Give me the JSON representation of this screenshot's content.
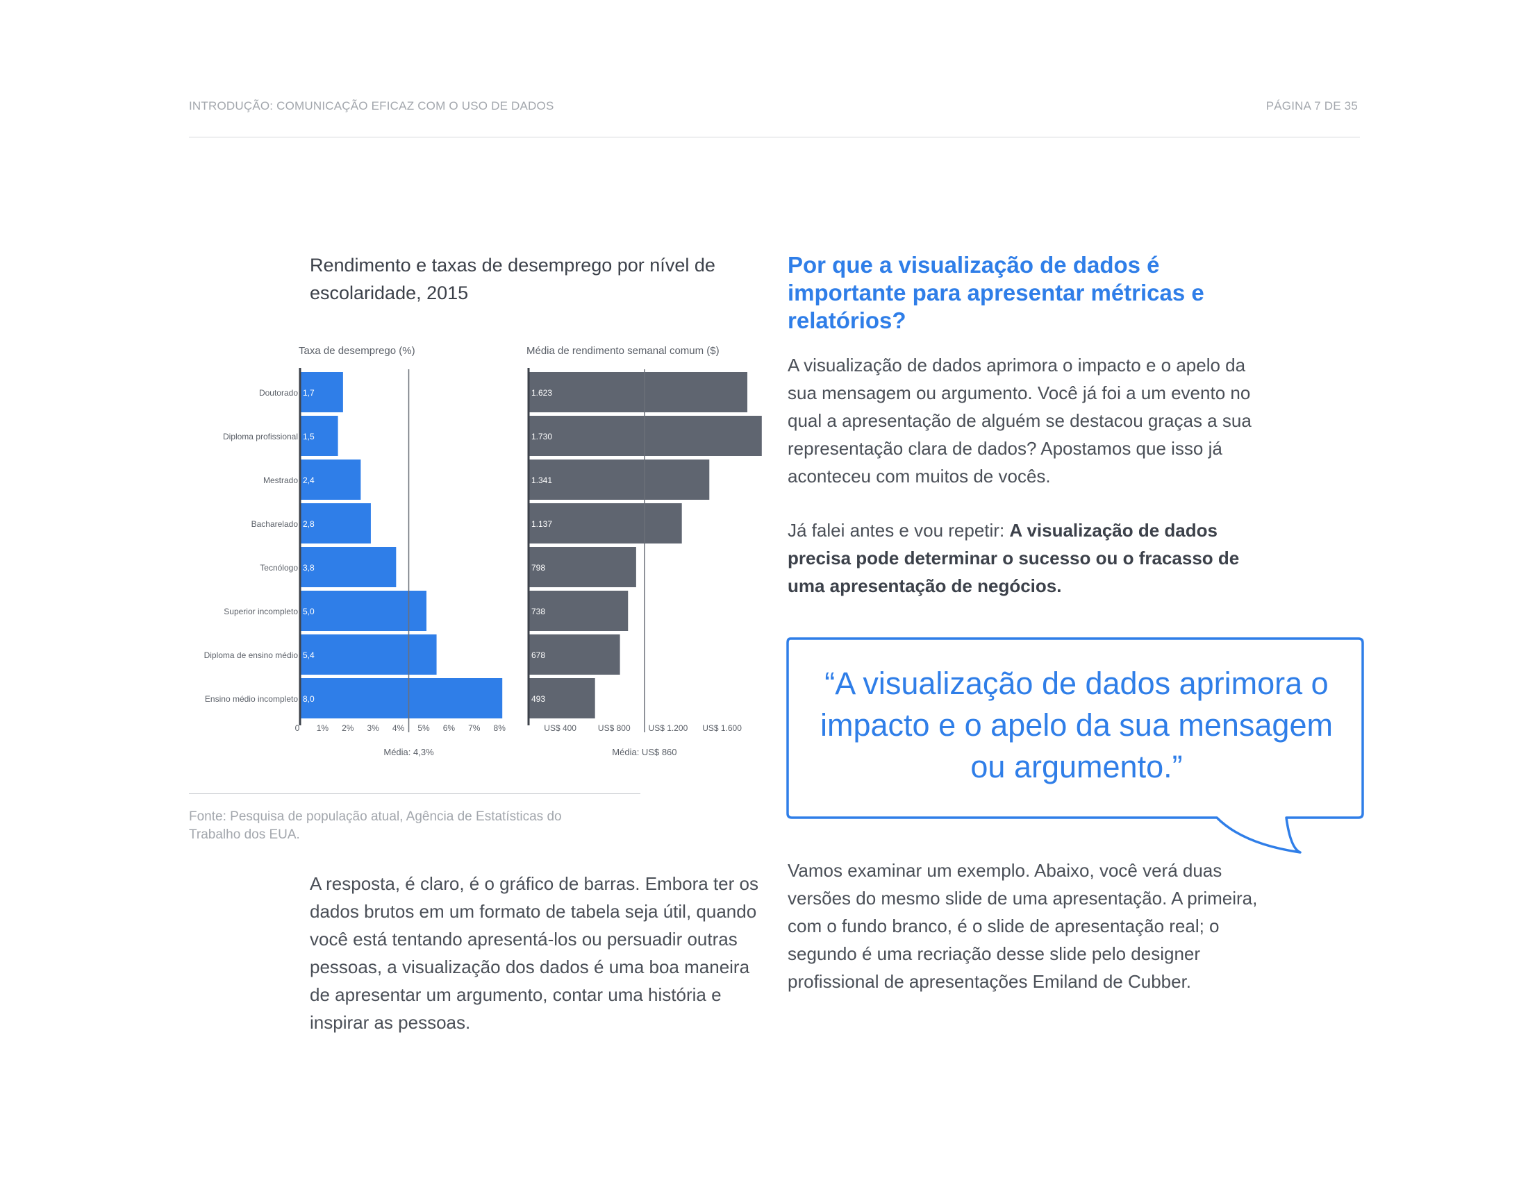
{
  "header": {
    "left": "INTRODUÇÃO: COMUNICAÇÃO EFICAZ COM O USO DE DADOS",
    "right": "PÁGINA 7 DE 35"
  },
  "chart_data": {
    "type": "bar",
    "title": "Rendimento e taxas de desemprego por nível de escolaridade, 2015",
    "categories": [
      "Doutorado",
      "Diploma profissional",
      "Mestrado",
      "Bacharelado",
      "Tecnólogo",
      "Superior incompleto",
      "Diploma de ensino médio",
      "Ensino médio incompleto"
    ],
    "series": [
      {
        "name": "Taxa de desemprego (%)",
        "values": [
          1.7,
          1.5,
          2.4,
          2.8,
          3.8,
          5.0,
          5.4,
          8.0
        ],
        "labels": [
          "1,7",
          "1,5",
          "2,4",
          "2,8",
          "3,8",
          "5,0",
          "5,4",
          "8,0"
        ],
        "color": "#2f7ee8",
        "ticks": [
          0,
          1,
          2,
          3,
          4,
          5,
          6,
          7,
          8
        ],
        "tick_labels": [
          "0",
          "1%",
          "2%",
          "3%",
          "4%",
          "5%",
          "6%",
          "7%",
          "8%"
        ],
        "average": 4.3,
        "average_label": "Média: 4,3%"
      },
      {
        "name": "Média de rendimento semanal comum ($)",
        "values": [
          1623,
          1730,
          1341,
          1137,
          798,
          738,
          678,
          493
        ],
        "labels": [
          "1.623",
          "1.730",
          "1.341",
          "1.137",
          "798",
          "738",
          "678",
          "493"
        ],
        "color": "#5f6570",
        "ticks": [
          400,
          800,
          1200,
          1600
        ],
        "tick_labels": [
          "US$ 400",
          "US$ 800",
          "US$ 1.200",
          "US$ 1.600"
        ],
        "average": 860,
        "average_label": "Média: US$ 860"
      }
    ],
    "source": "Fonte: Pesquisa de população atual, Agência de Estatísticas do Trabalho dos EUA."
  },
  "left_body": "A resposta, é claro, é o gráfico de barras. Embora ter os dados brutos em um formato de tabela seja útil, quando você está tentando apresentá-los ou persuadir outras pessoas, a visualização dos dados é uma boa maneira de apresentar um argumento, contar uma história e inspirar as pessoas.",
  "right": {
    "heading": "Por que a visualização de dados é importante para apresentar métricas e relatórios?",
    "para1": "A visualização de dados aprimora o impacto e o apelo da sua mensagem ou argumento. Você já foi a um evento no qual a apresentação de alguém se destacou graças a sua representação clara de dados? Apostamos que isso já aconteceu com muitos de vocês.",
    "para2_intro": "Já falei antes e vou repetir: ",
    "para2_bold": "A visualização de dados precisa pode determinar o sucesso ou o fracasso de uma apresentação de negócios.",
    "quote": "“A visualização de dados aprimora o impacto e o apelo da sua mensagem ou argumento.”",
    "para3": "Vamos examinar um exemplo. Abaixo, você verá duas versões do mesmo slide de uma apresentação. A primeira, com o fundo branco, é o slide de apresentação real; o segundo é uma recriação desse slide pelo designer profissional de apresentações Emiland de Cubber."
  }
}
